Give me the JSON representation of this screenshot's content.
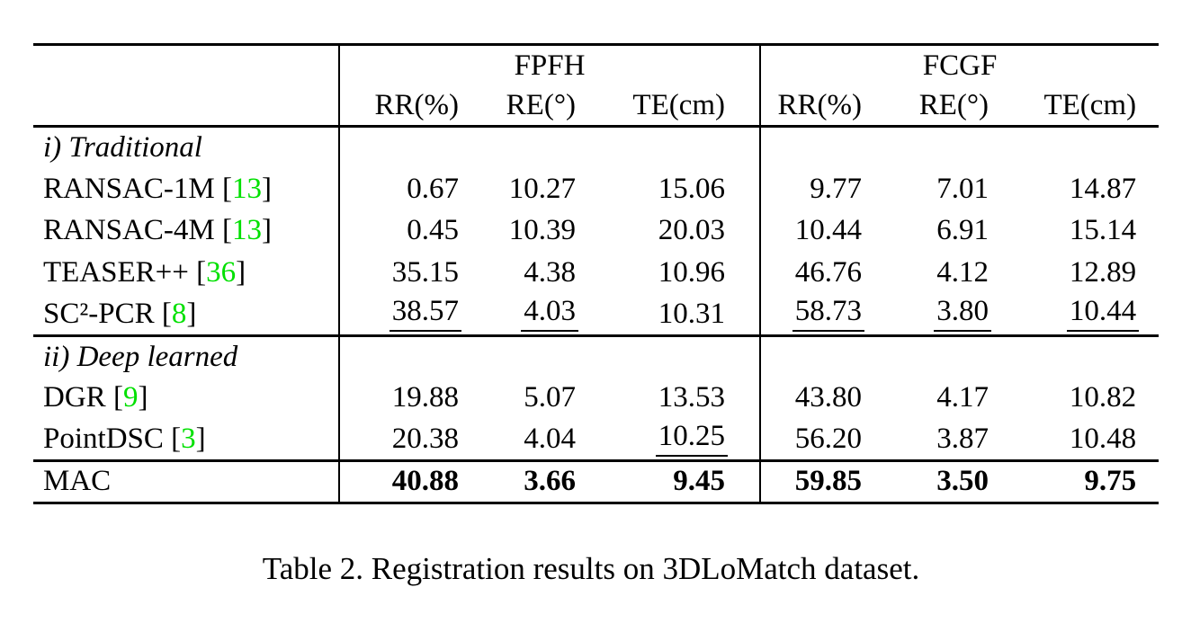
{
  "colors": {
    "text_black": "#000000",
    "citation_green": "#00e000",
    "background": "#ffffff"
  },
  "table": {
    "col_groups": [
      "FPFH",
      "FCGF"
    ],
    "sub_headers": [
      "RR(%)",
      "RE(°)",
      "TE(cm)",
      "RR(%)",
      "RE(°)",
      "TE(cm)"
    ],
    "rows": [
      {
        "type": "section",
        "label": "i) Traditional"
      },
      {
        "type": "data",
        "label": "RANSAC-1M",
        "ref": "13",
        "values": [
          "0.67",
          "10.27",
          "15.06",
          "9.77",
          "7.01",
          "14.87"
        ]
      },
      {
        "type": "data",
        "label": "RANSAC-4M",
        "ref": "13",
        "values": [
          "0.45",
          "10.39",
          "20.03",
          "10.44",
          "6.91",
          "15.14"
        ]
      },
      {
        "type": "data",
        "label": "TEASER++",
        "ref": "36",
        "values": [
          "35.15",
          "4.38",
          "10.96",
          "46.76",
          "4.12",
          "12.89"
        ]
      },
      {
        "type": "data",
        "label": "SC²-PCR",
        "ref": "8",
        "values": [
          "38.57",
          "4.03",
          "10.31",
          "58.73",
          "3.80",
          "10.44"
        ],
        "underline": [
          0,
          1,
          3,
          4,
          5
        ],
        "rule_below": true
      },
      {
        "type": "section",
        "label": "ii) Deep learned"
      },
      {
        "type": "data",
        "label": "DGR",
        "ref": "9",
        "values": [
          "19.88",
          "5.07",
          "13.53",
          "43.80",
          "4.17",
          "10.82"
        ]
      },
      {
        "type": "data",
        "label": "PointDSC",
        "ref": "3",
        "values": [
          "20.38",
          "4.04",
          "10.25",
          "56.20",
          "3.87",
          "10.48"
        ],
        "underline": [
          2
        ]
      },
      {
        "type": "data",
        "label": "MAC",
        "ref": null,
        "values": [
          "40.88",
          "3.66",
          "9.45",
          "59.85",
          "3.50",
          "9.75"
        ],
        "bold": true,
        "rule_above": true
      }
    ],
    "caption": "Table 2. Registration results on 3DLoMatch dataset."
  }
}
